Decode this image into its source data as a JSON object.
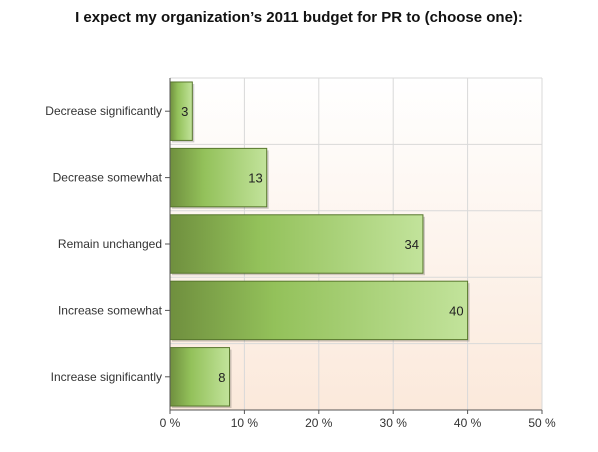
{
  "chart_data": {
    "type": "bar",
    "orientation": "horizontal",
    "title": "I expect my organization’s 2011 budget for PR to (choose one):",
    "xlabel": "",
    "ylabel": "",
    "categories": [
      "Decrease significantly",
      "Decrease somewhat",
      "Remain unchanged",
      "Increase somewhat",
      "Increase significantly"
    ],
    "values": [
      3,
      13,
      34,
      40,
      8
    ],
    "data_labels": [
      "3",
      "13",
      "34",
      "40",
      "8"
    ],
    "xlim": [
      0,
      50
    ],
    "x_ticks": [
      0,
      10,
      20,
      30,
      40,
      50
    ],
    "x_tick_labels": [
      "0 %",
      "10 %",
      "20 %",
      "30 %",
      "40 %",
      "50 %"
    ],
    "grid": true,
    "legend": "none",
    "colors": {
      "bar_dark": "#6f8f3e",
      "bar_mid": "#93c15a",
      "bar_light": "#c2e39b",
      "bar_edge": "#58772d",
      "plot_bg_top": "#ffffff",
      "plot_bg_bottom": "#fbe9db",
      "grid": "#d9d9d9",
      "axis": "#555555"
    }
  }
}
